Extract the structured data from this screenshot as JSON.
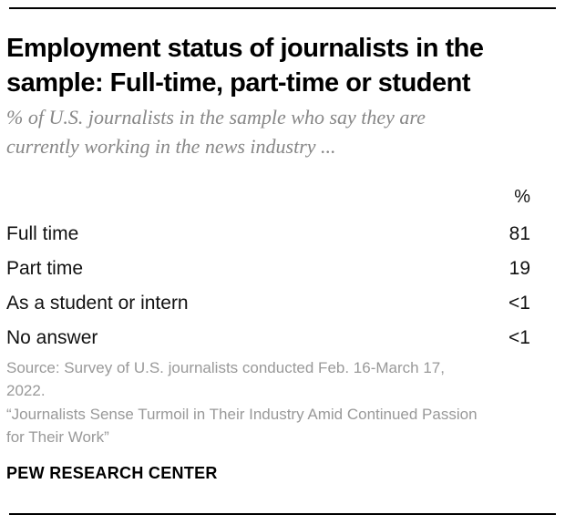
{
  "report": {
    "title": "Employment status of journalists in the\nsample: Full-time, part-time or student",
    "subtitle": "% of U.S. journalists in the sample who say they are\ncurrently working in the news industry ...",
    "source_note": "Source: Survey of U.S. journalists conducted Feb. 16-March 17,\n2022.",
    "report_title_quote": "“Journalists Sense Turmoil in Their Industry Amid Continued Passion\nfor Their Work”",
    "brand": "PEW RESEARCH CENTER"
  },
  "table": {
    "value_column_header": "%",
    "rows": [
      {
        "label": "Full time",
        "value": "81"
      },
      {
        "label": "Part time",
        "value": "19"
      },
      {
        "label": "As a student or intern",
        "value": "<1"
      },
      {
        "label": "No answer",
        "value": "<1"
      }
    ]
  },
  "chart_data": {
    "type": "table",
    "title": "Employment status of journalists in the sample: Full-time, part-time or student",
    "subtitle": "% of U.S. journalists in the sample who say they are currently working in the news industry ...",
    "columns": [
      "",
      "%"
    ],
    "categories": [
      "Full time",
      "Part time",
      "As a student or intern",
      "No answer"
    ],
    "values": [
      "81",
      "19",
      "<1",
      "<1"
    ],
    "source": "Source: Survey of U.S. journalists conducted Feb. 16-March 17, 2022.",
    "notes": "“Journalists Sense Turmoil in Their Industry Amid Continued Passion for Their Work”"
  },
  "colors": {
    "background": "#ffffff",
    "text_primary": "#000000",
    "table_text": "#111111",
    "subtitle_gray": "#878787",
    "source_gray": "#999999",
    "rule_black": "#000000"
  }
}
